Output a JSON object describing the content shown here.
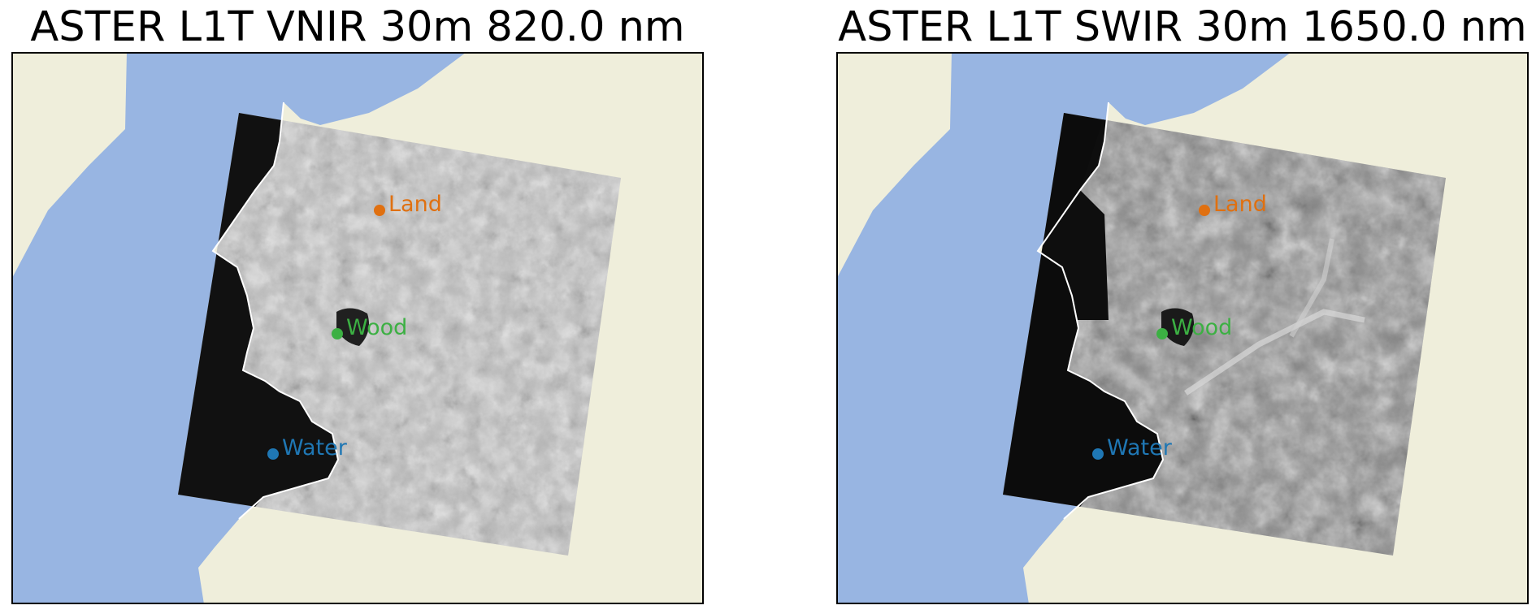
{
  "colors": {
    "ocean": "#98b5e2",
    "land": "#efeedb",
    "coastline": "#ffffff",
    "frame": "#000000",
    "land_marker": "#e07010",
    "wood_marker": "#3cb043",
    "water_marker": "#1f77b4"
  },
  "panels": [
    {
      "title": "ASTER L1T VNIR 30m 820.0 nm",
      "image_tone": "bright-grayscale",
      "points": [
        {
          "label": "Land",
          "color_key": "land_marker"
        },
        {
          "label": "Wood",
          "color_key": "wood_marker"
        },
        {
          "label": "Water",
          "color_key": "water_marker"
        }
      ]
    },
    {
      "title": "ASTER L1T SWIR 30m 1650.0 nm",
      "image_tone": "mid-grayscale",
      "points": [
        {
          "label": "Land",
          "color_key": "land_marker"
        },
        {
          "label": "Wood",
          "color_key": "wood_marker"
        },
        {
          "label": "Water",
          "color_key": "water_marker"
        }
      ]
    }
  ]
}
